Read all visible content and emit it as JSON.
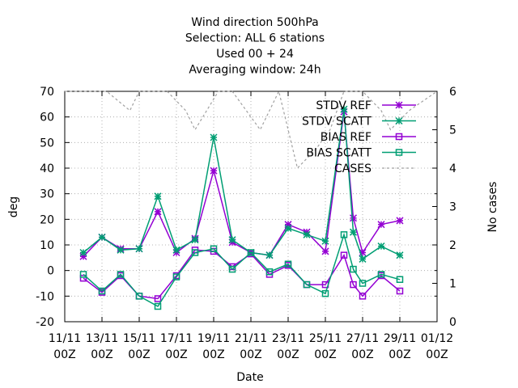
{
  "chart_data": {
    "type": "line",
    "title_lines": [
      "Wind direction 500hPa",
      "Selection: ALL      6 stations",
      "Used  00 + 24",
      "Averaging window: 24h"
    ],
    "xlabel": "Date",
    "ylabel": "deg",
    "y2label": "No cases",
    "ylim": [
      -20,
      70
    ],
    "yticks": [
      -20,
      -10,
      0,
      10,
      20,
      30,
      40,
      50,
      60,
      70
    ],
    "y2lim": [
      0,
      6
    ],
    "y2ticks": [
      0,
      1,
      2,
      3,
      4,
      5,
      6
    ],
    "xlim": [
      "11/11 00Z",
      "01/12 00Z"
    ],
    "xtick_labels": [
      [
        "11/11",
        "00Z"
      ],
      [
        "13/11",
        "00Z"
      ],
      [
        "15/11",
        "00Z"
      ],
      [
        "17/11",
        "00Z"
      ],
      [
        "19/11",
        "00Z"
      ],
      [
        "21/11",
        "00Z"
      ],
      [
        "23/11",
        "00Z"
      ],
      [
        "25/11",
        "00Z"
      ],
      [
        "27/11",
        "00Z"
      ],
      [
        "29/11",
        "00Z"
      ],
      [
        "01/12",
        "00Z"
      ]
    ],
    "grid": true,
    "legend_position": "top-right",
    "x": [
      "12/11 00Z",
      "13/11 00Z",
      "14/11 00Z",
      "15/11 00Z",
      "16/11 00Z",
      "17/11 00Z",
      "18/11 00Z",
      "19/11 00Z",
      "20/11 00Z",
      "21/11 00Z",
      "22/11 00Z",
      "23/11 00Z",
      "24/11 00Z",
      "25/11 00Z",
      "26/11 00Z",
      "26/11 12Z",
      "27/11 00Z",
      "28/11 00Z",
      "29/11 00Z",
      "30/11 00Z"
    ],
    "series": [
      {
        "name": "STDV REF",
        "color": "#9400d3",
        "axis": "y",
        "marker": "star",
        "values": [
          5.5,
          13,
          8.5,
          8.5,
          23,
          7,
          12.5,
          39,
          11,
          7,
          6,
          18,
          15,
          7.5,
          62,
          20.5,
          7,
          18,
          19.5,
          null
        ]
      },
      {
        "name": "STDV SCATT",
        "color": "#009e73",
        "axis": "y",
        "marker": "star",
        "values": [
          7,
          13,
          8,
          8.5,
          29,
          8,
          12,
          52,
          12,
          7,
          6,
          16.5,
          14,
          11.5,
          63,
          15,
          4.5,
          9.5,
          6,
          null
        ]
      },
      {
        "name": "BIAS REF",
        "color": "#9400d3",
        "axis": "y",
        "marker": "square",
        "values": [
          -3,
          -8.5,
          -2,
          -10,
          -11,
          -2,
          8,
          7.5,
          1.5,
          6.5,
          -1.5,
          2,
          -5.5,
          -5.5,
          6,
          -5.5,
          -10,
          -2,
          -8,
          null
        ]
      },
      {
        "name": "BIAS SCATT",
        "color": "#009e73",
        "axis": "y",
        "marker": "square",
        "values": [
          -1.5,
          -8,
          -1.5,
          -10,
          -14,
          -2.5,
          7,
          8.5,
          0.5,
          7,
          -0.5,
          2.5,
          -5.5,
          -9,
          14,
          0.5,
          -5,
          -1.5,
          -3.5,
          null
        ]
      },
      {
        "name": "CASES",
        "color": "#a0a0a0",
        "axis": "y2",
        "dashed": true,
        "x": [
          "11/11 00Z",
          "12/11 12Z",
          "13/11 06Z",
          "14/11 12Z",
          "15/11 00Z",
          "16/11 12Z",
          "17/11 12Z",
          "18/11 00Z",
          "19/11 06Z",
          "20/11 00Z",
          "20/11 18Z",
          "21/11 12Z",
          "22/11 12Z",
          "23/11 12Z",
          "24/11 12Z",
          "25/11 06Z",
          "26/11 00Z",
          "27/11 00Z",
          "28/11 00Z",
          "28/11 12Z",
          "29/11 12Z",
          "01/12 00Z"
        ],
        "values": [
          6,
          6,
          6,
          5.5,
          6,
          6,
          5.5,
          5,
          6,
          6,
          5.5,
          5,
          6,
          4,
          4.5,
          5,
          6,
          6,
          5.5,
          5,
          5.5,
          6
        ]
      }
    ]
  }
}
